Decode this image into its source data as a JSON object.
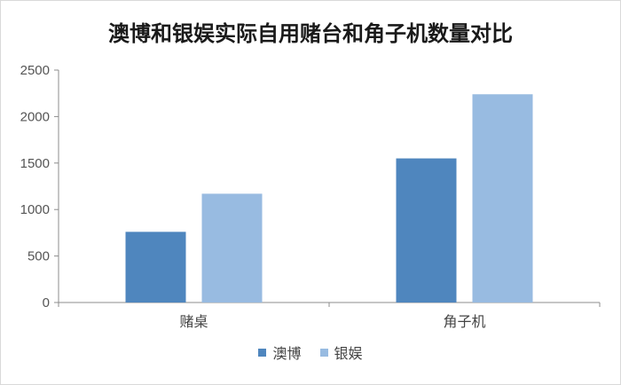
{
  "chart_data": {
    "type": "bar",
    "title": "澳博和银娱实际自用赌台和角子机数量对比",
    "categories": [
      "赌桌",
      "角子机"
    ],
    "series": [
      {
        "name": "澳博",
        "color": "#4f86be",
        "values": [
          760,
          1550
        ]
      },
      {
        "name": "银娱",
        "color": "#98bbe1",
        "values": [
          1170,
          2240
        ]
      }
    ],
    "ylim": [
      0,
      2500
    ],
    "yticks": [
      "0",
      "500",
      "1000",
      "1500",
      "2000",
      "2500"
    ],
    "xlabel": "",
    "ylabel": "",
    "grid": false,
    "legend_position": "bottom"
  }
}
